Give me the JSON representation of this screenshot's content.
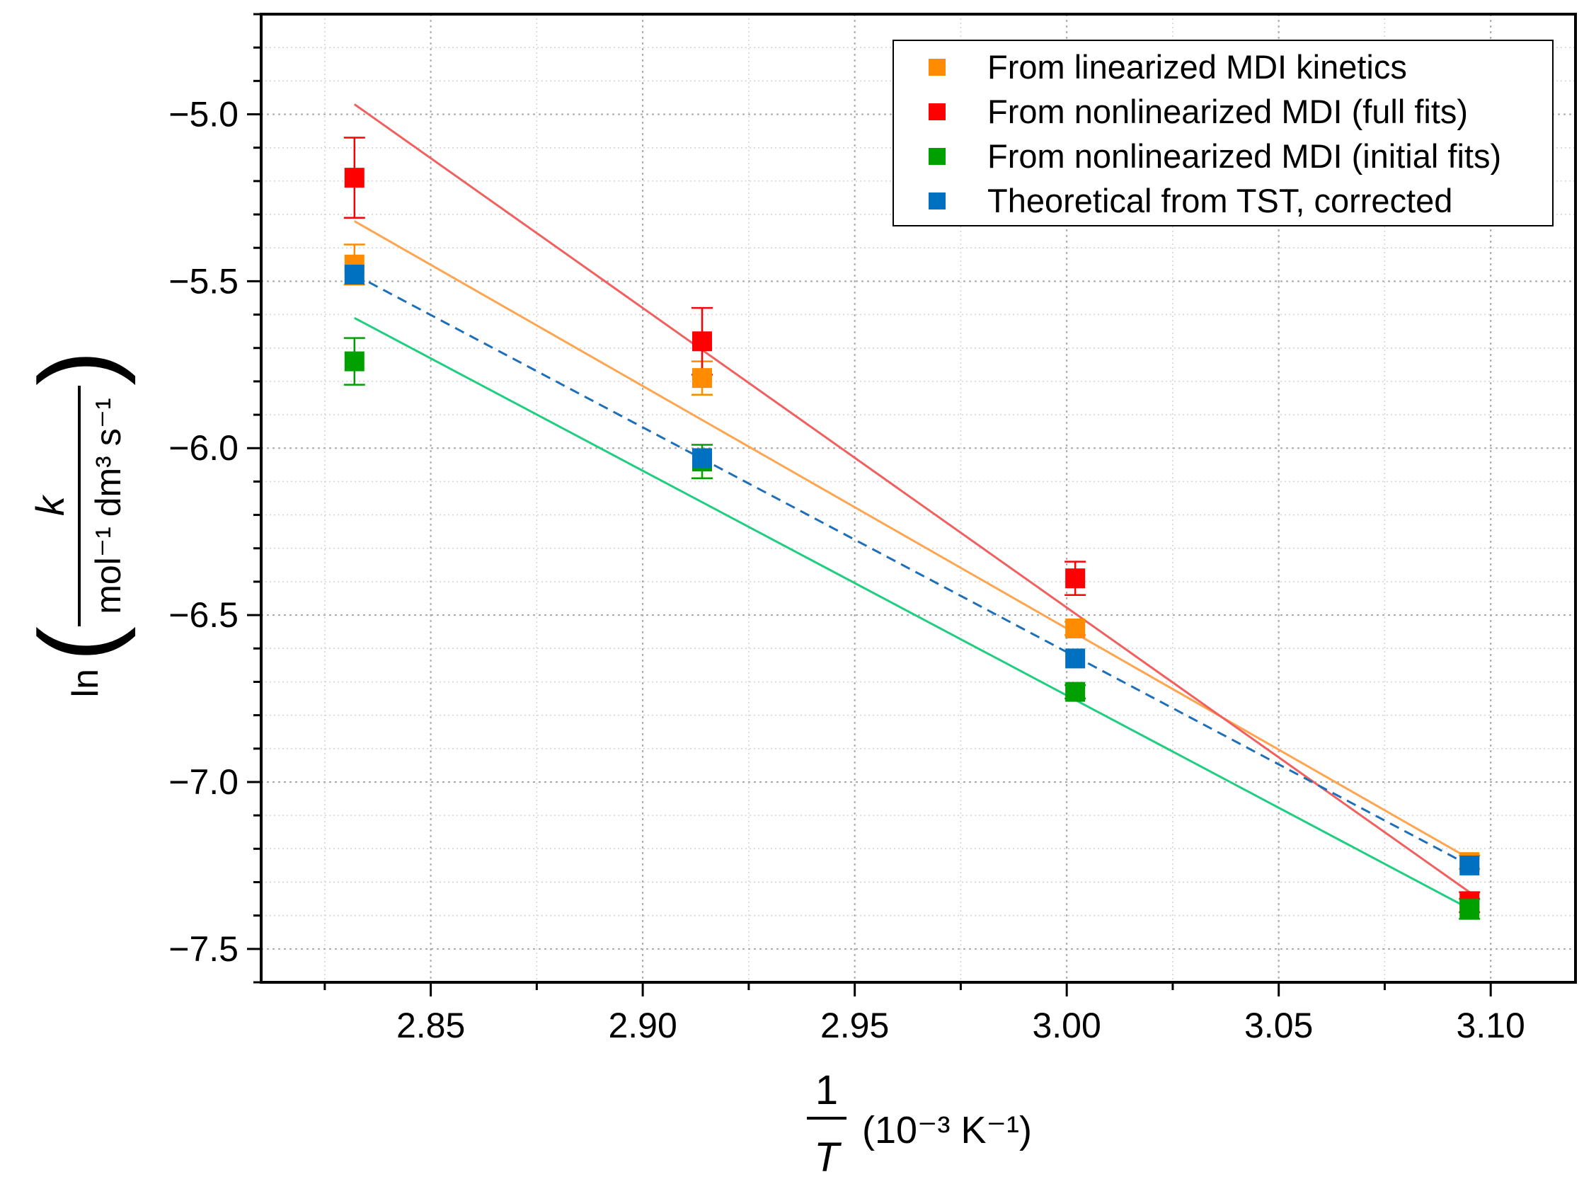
{
  "chart_data": {
    "type": "scatter",
    "xlim": [
      2.81,
      3.12
    ],
    "ylim": [
      -7.6,
      -4.7
    ],
    "x_ticks": [
      2.85,
      2.9,
      2.95,
      3.0,
      3.05,
      3.1
    ],
    "x_tick_labels": [
      "2.85",
      "2.90",
      "2.95",
      "3.00",
      "3.05",
      "3.10"
    ],
    "y_ticks": [
      -5.0,
      -5.5,
      -6.0,
      -6.5,
      -7.0,
      -7.5
    ],
    "y_tick_labels": [
      "−5.0",
      "−5.5",
      "−6.0",
      "−6.5",
      "−7.0",
      "−7.5"
    ],
    "grid": true,
    "legend_position": "top-right",
    "xlabel": {
      "numerator": "1",
      "denominator": "T",
      "units": "(10⁻³ K⁻¹)"
    },
    "ylabel": {
      "func": "ln",
      "numerator": "k",
      "denominator": "mol⁻¹ dm³ s⁻¹"
    },
    "series": [
      {
        "name": "From linearized MDI kinetics",
        "color": "#FF8C00",
        "fit_color": "#FFA54F",
        "fit_style": "solid",
        "x": [
          2.832,
          2.914,
          3.002,
          3.095
        ],
        "y": [
          -5.45,
          -5.79,
          -6.54,
          -7.24
        ],
        "err": [
          0.06,
          0.05,
          0.02,
          0.02
        ],
        "fit": {
          "x": [
            2.832,
            3.095
          ],
          "y": [
            -5.32,
            -7.23
          ]
        }
      },
      {
        "name": "From nonlinearized MDI (full fits)",
        "color": "#FF0000",
        "fit_color": "#F0605E",
        "fit_style": "solid",
        "x": [
          2.832,
          2.914,
          3.002,
          3.095
        ],
        "y": [
          -5.19,
          -5.68,
          -6.39,
          -7.36
        ],
        "err": [
          0.12,
          0.1,
          0.05,
          0.03
        ],
        "fit": {
          "x": [
            2.832,
            3.095
          ],
          "y": [
            -4.97,
            -7.33
          ]
        }
      },
      {
        "name": "From nonlinearized MDI (initial fits)",
        "color": "#00A000",
        "fit_color": "#1FCF7F",
        "fit_style": "solid",
        "x": [
          2.832,
          2.914,
          3.002,
          3.095
        ],
        "y": [
          -5.74,
          -6.04,
          -6.73,
          -7.38
        ],
        "err": [
          0.07,
          0.05,
          0.02,
          0.03
        ],
        "fit": {
          "x": [
            2.832,
            3.095
          ],
          "y": [
            -5.61,
            -7.38
          ]
        }
      },
      {
        "name": "Theoretical from TST, corrected",
        "color": "#0070C0",
        "fit_color": "#1F6FB8",
        "fit_style": "dashed",
        "x": [
          2.832,
          2.914,
          3.002,
          3.095
        ],
        "y": [
          -5.48,
          -6.03,
          -6.63,
          -7.25
        ],
        "err": [
          0,
          0,
          0,
          0
        ],
        "fit": {
          "x": [
            2.832,
            3.095
          ],
          "y": [
            -5.48,
            -7.25
          ]
        }
      }
    ]
  }
}
